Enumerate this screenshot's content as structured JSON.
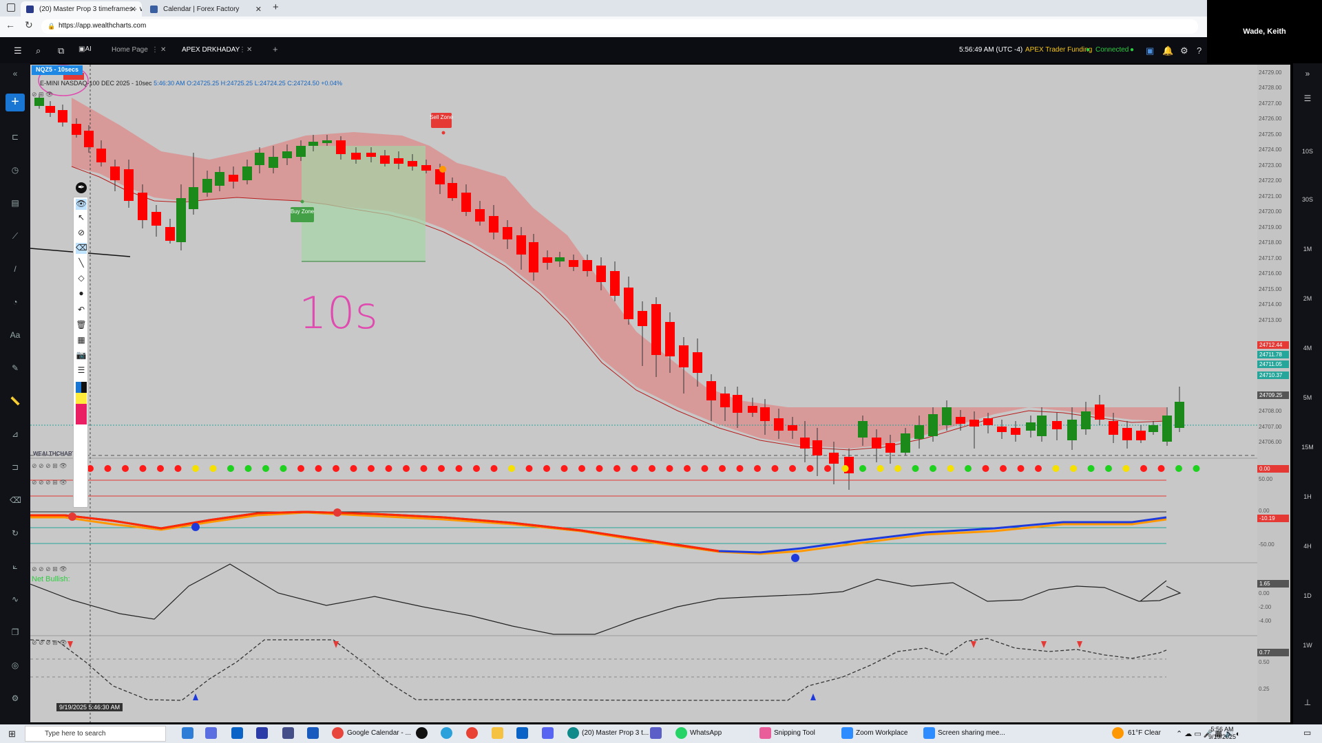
{
  "browser": {
    "tabs": [
      {
        "title": "(20) Master Prop 3 timeframes - ∨"
      },
      {
        "title": "Calendar | Forex Factory"
      }
    ],
    "url": "https://app.wealthcharts.com"
  },
  "user": {
    "name": "Wade, Keith"
  },
  "app_header": {
    "tabs": [
      {
        "label": "Home Page"
      },
      {
        "label": "APEX DRKHADAY"
      }
    ],
    "time": "5:56:49 AM  (UTC -4)",
    "account": "APEX Trader Funding",
    "status": "Connected",
    "status_color": "#2ecc40",
    "ai_label": "AI"
  },
  "chart": {
    "symbol_tag": "NQZ5 - 10secs",
    "ohlc_line": "E-MINI NASDAQ-100 DEC 2025 - 10sec",
    "ohlc_values": "5:46:30 AM O:24725.25 H:24725.25 L:24724.25 C:24724.50 +0.04%",
    "sell_zone": "Sell Zone",
    "buy_zone": "Buy Zone",
    "handwriting": "10s",
    "net_bullish": "Net Bullish:",
    "watermark": "WEALTHCHARTS",
    "crosshair_date": "9/19/2025 5:46:30 AM",
    "price_axis": [
      "24729.00",
      "24728.00",
      "24727.00",
      "24726.00",
      "24725.00",
      "24724.00",
      "24723.00",
      "24722.00",
      "24721.00",
      "24720.00",
      "24719.00",
      "24718.00",
      "24717.00",
      "24716.00",
      "24715.00",
      "24714.00",
      "24713.00",
      "24708.00",
      "24707.00",
      "24706.00"
    ],
    "price_boxes": [
      {
        "value": "24712.44",
        "color": "#e53935"
      },
      {
        "value": "24711.78",
        "color": "#26a69a"
      },
      {
        "value": "24711.05",
        "color": "#26a69a"
      },
      {
        "value": "24710.37",
        "color": "#26a69a"
      },
      {
        "value": "24709.25",
        "color": "#555555"
      }
    ],
    "ind1_value": "0.00",
    "ind2_axis": [
      "50.00",
      "0.00",
      "-50.00"
    ],
    "ind2_value": "-10.19",
    "ind3_axis": [
      "0.00",
      "-2.00",
      "-4.00"
    ],
    "ind3_value": "1.65",
    "ind4_axis": [
      "0.50",
      "0.25"
    ],
    "ind4_value": "0.77",
    "timeframes": [
      "10S",
      "30S",
      "1M",
      "2M",
      "4M",
      "5M",
      "15M",
      "1H",
      "4H",
      "1D",
      "1W"
    ]
  },
  "taskbar": {
    "search_placeholder": "Type here to search",
    "items": [
      "Google Calendar - ...",
      "(20) Master Prop 3 t...",
      "WhatsApp",
      "Snipping Tool",
      "Zoom Workplace",
      "Screen sharing mee..."
    ],
    "weather": "61°F  Clear",
    "time": "5:56 AM",
    "date": "9/19/2025"
  },
  "colors": {
    "bull": "#1b8a1b",
    "bear": "#ff0000",
    "cloud": "#e57373",
    "chart_bg": "#c8c8c8"
  }
}
